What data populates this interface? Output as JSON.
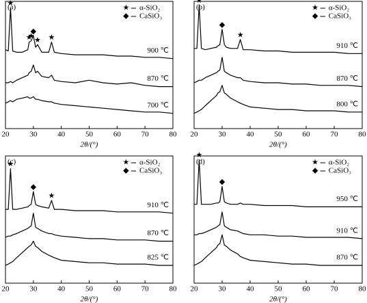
{
  "chart_data": [
    {
      "type": "line",
      "panel": "(a)",
      "x_label": "2θ/(°)",
      "xlim": [
        20,
        80
      ],
      "xticks": [
        20,
        30,
        40,
        50,
        60,
        70,
        80
      ],
      "ylim": [
        0,
        100
      ],
      "legend": {
        "items": [
          {
            "marker": "★",
            "label": "α-SiO₂"
          },
          {
            "marker": "◆",
            "label": "CaSiO₃"
          }
        ]
      },
      "x": [
        20,
        21,
        21.8,
        22.6,
        24,
        26,
        28,
        28.5,
        29.2,
        30,
        30.8,
        31.5,
        33,
        35.5,
        36.5,
        37.5,
        40,
        45,
        50,
        55,
        60,
        65,
        70,
        75,
        80
      ],
      "series": [
        {
          "name": "900 ℃",
          "color": "#000000",
          "values": [
            62,
            61,
            95,
            61,
            60,
            60,
            62,
            68,
            69,
            73,
            64,
            66,
            60,
            60,
            68,
            60,
            59,
            58,
            58,
            58,
            57,
            57,
            56,
            56,
            55
          ],
          "alpha_peaks": [
            21.8,
            28.5,
            29.2,
            31.5,
            36.5
          ],
          "casio3_peaks": [
            30
          ]
        },
        {
          "name": "870 ℃",
          "color": "#000000",
          "values": [
            36,
            36,
            37,
            36,
            38,
            40,
            42,
            44,
            45,
            50,
            44,
            45,
            41,
            40,
            42,
            38,
            37,
            36,
            38,
            36,
            35,
            36,
            34,
            33,
            33
          ]
        },
        {
          "name": "700 ℃",
          "color": "#000000",
          "values": [
            20,
            21,
            22,
            21,
            23,
            24,
            25,
            24,
            24,
            25,
            23,
            23,
            22,
            21,
            21,
            20,
            19,
            18,
            17,
            16,
            15,
            14,
            13,
            13,
            12
          ]
        }
      ]
    },
    {
      "type": "line",
      "panel": "(b)",
      "x_label": "2θ/(°)",
      "xlim": [
        20,
        80
      ],
      "xticks": [
        20,
        30,
        40,
        50,
        60,
        70,
        80
      ],
      "ylim": [
        0,
        100
      ],
      "legend": {
        "items": [
          {
            "marker": "★",
            "label": "α-SiO₂"
          },
          {
            "marker": "◆",
            "label": "CaSiO₃"
          }
        ]
      },
      "x": [
        20,
        21,
        21.8,
        22.6,
        24,
        26,
        28,
        28.5,
        29.2,
        30,
        30.8,
        31.5,
        33,
        35.5,
        36.5,
        37.5,
        40,
        45,
        50,
        55,
        60,
        65,
        70,
        75,
        80
      ],
      "series": [
        {
          "name": "910 ℃",
          "color": "#000000",
          "values": [
            63,
            63,
            97,
            63,
            62,
            63,
            64,
            65,
            66,
            78,
            66,
            64,
            63,
            63,
            70,
            62,
            62,
            61,
            61,
            60,
            60,
            60,
            60,
            59,
            59
          ],
          "alpha_peaks": [
            21.8,
            36.5
          ],
          "casio3_peaks": [
            30
          ]
        },
        {
          "name": "870 ℃",
          "color": "#000000",
          "values": [
            36,
            37,
            38,
            38,
            40,
            42,
            44,
            45,
            46,
            56,
            45,
            44,
            42,
            40,
            40,
            38,
            37,
            36,
            36,
            35,
            35,
            34,
            34,
            34,
            33
          ]
        },
        {
          "name": "800 ℃",
          "color": "#000000",
          "values": [
            12,
            13,
            14,
            15,
            18,
            22,
            26,
            28,
            29,
            34,
            28,
            27,
            24,
            21,
            20,
            19,
            17,
            16,
            15,
            15,
            14,
            14,
            14,
            13,
            13
          ]
        }
      ]
    },
    {
      "type": "line",
      "panel": "(c)",
      "x_label": "2θ/(°)",
      "xlim": [
        20,
        80
      ],
      "xticks": [
        20,
        30,
        40,
        50,
        60,
        70,
        80
      ],
      "ylim": [
        0,
        100
      ],
      "legend": {
        "items": [
          {
            "marker": "★",
            "label": "α-SiO₂"
          },
          {
            "marker": "◆",
            "label": "CaSiO₃"
          }
        ]
      },
      "x": [
        20,
        21,
        21.8,
        22.6,
        24,
        26,
        28,
        28.5,
        29.2,
        30,
        30.8,
        31.5,
        33,
        35.5,
        36.5,
        37.5,
        40,
        45,
        50,
        55,
        60,
        65,
        70,
        75,
        80
      ],
      "series": [
        {
          "name": "910 ℃",
          "color": "#000000",
          "values": [
            58,
            58,
            90,
            58,
            58,
            59,
            60,
            61,
            62,
            72,
            62,
            61,
            60,
            59,
            65,
            58,
            58,
            57,
            57,
            57,
            56,
            56,
            56,
            56,
            55
          ],
          "alpha_peaks": [
            21.8,
            36.5
          ],
          "casio3_peaks": [
            30
          ]
        },
        {
          "name": "870 ℃",
          "color": "#000000",
          "values": [
            36,
            37,
            37,
            38,
            39,
            41,
            43,
            44,
            45,
            55,
            44,
            43,
            41,
            39,
            39,
            38,
            37,
            36,
            35,
            35,
            34,
            34,
            34,
            33,
            33
          ]
        },
        {
          "name": "825 ℃",
          "color": "#000000",
          "values": [
            14,
            15,
            16,
            17,
            20,
            24,
            28,
            29,
            30,
            33,
            29,
            28,
            25,
            22,
            21,
            20,
            18,
            17,
            16,
            16,
            15,
            15,
            15,
            14,
            14
          ]
        }
      ]
    },
    {
      "type": "line",
      "panel": "(d)",
      "x_label": "2θ/(°)",
      "xlim": [
        20,
        80
      ],
      "xticks": [
        20,
        30,
        40,
        50,
        60,
        70,
        80
      ],
      "ylim": [
        0,
        100
      ],
      "legend": {
        "items": [
          {
            "marker": "★",
            "label": "α-SiO₂"
          },
          {
            "marker": "◆",
            "label": "CaSiO₃"
          }
        ]
      },
      "x": [
        20,
        21,
        21.8,
        22.6,
        24,
        26,
        28,
        28.5,
        29.2,
        30,
        30.8,
        31.5,
        33,
        35.5,
        36.5,
        37.5,
        40,
        45,
        50,
        55,
        60,
        65,
        70,
        75,
        80
      ],
      "series": [
        {
          "name": "950 ℃",
          "color": "#000000",
          "values": [
            62,
            62,
            97,
            62,
            62,
            62,
            63,
            63,
            64,
            76,
            64,
            63,
            62,
            62,
            63,
            62,
            62,
            61,
            61,
            61,
            60,
            60,
            60,
            60,
            60
          ],
          "alpha_peaks": [
            21.8
          ],
          "casio3_peaks": [
            30
          ]
        },
        {
          "name": "910 ℃",
          "color": "#000000",
          "values": [
            38,
            38,
            39,
            39,
            40,
            42,
            44,
            45,
            46,
            56,
            45,
            44,
            42,
            41,
            40,
            39,
            38,
            38,
            37,
            37,
            36,
            36,
            36,
            36,
            35
          ]
        },
        {
          "name": "870 ℃",
          "color": "#000000",
          "values": [
            14,
            15,
            16,
            17,
            20,
            24,
            28,
            30,
            31,
            38,
            30,
            29,
            26,
            23,
            21,
            20,
            18,
            17,
            16,
            15,
            15,
            14,
            14,
            14,
            14
          ]
        }
      ]
    }
  ]
}
